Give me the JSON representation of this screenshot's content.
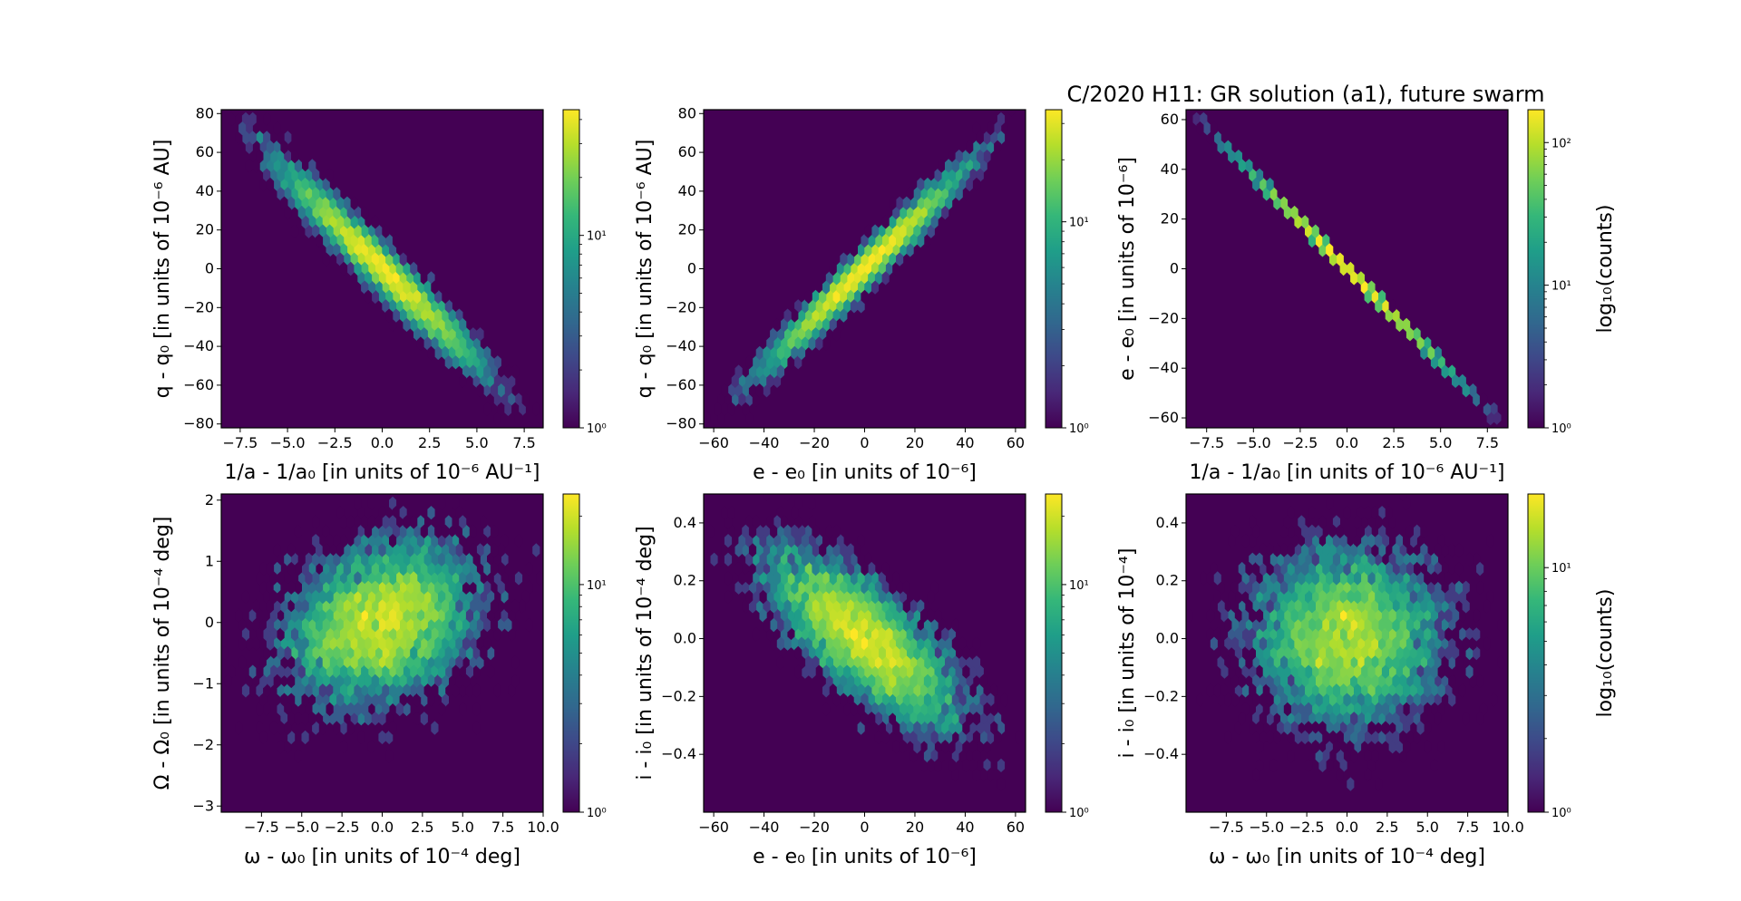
{
  "figure": {
    "title": "C/2020 H11: GR solution (a1), future swarm"
  },
  "colors": {
    "background": "#ffffff",
    "plot_bg": "#440154",
    "viridis": [
      "#440154",
      "#482878",
      "#3e4989",
      "#31688e",
      "#26828e",
      "#1f9e89",
      "#35b779",
      "#6ece58",
      "#b5de2b",
      "#fde725"
    ]
  },
  "chart_data": [
    {
      "type": "heatmap",
      "panel": "top-left",
      "xlabel": "1/a - 1/a₀ [in units of 10⁻⁶ AU⁻¹]",
      "ylabel": "q - q₀ [in units of 10⁻⁶ AU]",
      "xlim": [
        -8.5,
        8.5
      ],
      "ylim": [
        -82,
        82
      ],
      "xticks": [
        -7.5,
        -5.0,
        -2.5,
        0.0,
        2.5,
        5.0,
        7.5
      ],
      "xtick_labels": [
        "−7.5",
        "−5.0",
        "−2.5",
        "0.0",
        "2.5",
        "5.0",
        "7.5"
      ],
      "yticks": [
        -80,
        -60,
        -40,
        -20,
        0,
        20,
        40,
        60,
        80
      ],
      "ytick_labels": [
        "−80",
        "−60",
        "−40",
        "−20",
        "0",
        "20",
        "40",
        "60",
        "80"
      ],
      "distribution": {
        "shape": "correlated",
        "slope": -9.6,
        "x_sigma": 2.6,
        "perp_sigma": 5.5,
        "x_range": [
          -8.3,
          8.3
        ]
      },
      "colorbar": {
        "scale": "log",
        "range": [
          1,
          45
        ],
        "tick_labels": [
          "10⁰",
          "10¹"
        ],
        "label": ""
      }
    },
    {
      "type": "heatmap",
      "panel": "top-middle",
      "xlabel": "e - e₀ [in units of 10⁻⁶]",
      "ylabel": "q - q₀ [in units of 10⁻⁶ AU]",
      "xlim": [
        -64,
        64
      ],
      "ylim": [
        -82,
        82
      ],
      "xticks": [
        -60,
        -40,
        -20,
        0,
        20,
        40,
        60
      ],
      "xtick_labels": [
        "−60",
        "−40",
        "−20",
        "0",
        "20",
        "40",
        "60"
      ],
      "yticks": [
        -80,
        -60,
        -40,
        -20,
        0,
        20,
        40,
        60,
        80
      ],
      "ytick_labels": [
        "−80",
        "−60",
        "−40",
        "−20",
        "0",
        "20",
        "40",
        "60",
        "80"
      ],
      "distribution": {
        "shape": "correlated",
        "slope": 1.28,
        "x_sigma": 19,
        "perp_sigma": 4.5,
        "x_range": [
          -62,
          62
        ]
      },
      "colorbar": {
        "scale": "log",
        "range": [
          1,
          35
        ],
        "tick_labels": [
          "10⁰",
          "10¹"
        ],
        "label": ""
      }
    },
    {
      "type": "heatmap",
      "panel": "top-right",
      "xlabel": "1/a - 1/a₀ [in units of 10⁻⁶ AU⁻¹]",
      "ylabel": "e - e₀ [in units of 10⁻⁶]",
      "xlim": [
        -8.6,
        8.6
      ],
      "ylim": [
        -64,
        64
      ],
      "xticks": [
        -7.5,
        -5.0,
        -2.5,
        0.0,
        2.5,
        5.0,
        7.5
      ],
      "xtick_labels": [
        "−7.5",
        "−5.0",
        "−2.5",
        "0.0",
        "2.5",
        "5.0",
        "7.5"
      ],
      "yticks": [
        -60,
        -40,
        -20,
        0,
        20,
        40,
        60
      ],
      "ytick_labels": [
        "−60",
        "−40",
        "−20",
        "0",
        "20",
        "40",
        "60"
      ],
      "distribution": {
        "shape": "line",
        "slope": -7.55,
        "x_sigma": 2.6,
        "x_range": [
          -8.3,
          8.3
        ]
      },
      "colorbar": {
        "scale": "log",
        "range": [
          1,
          170
        ],
        "tick_labels": [
          "10⁰",
          "10¹",
          "10²"
        ],
        "label": "log₁₀(counts)"
      }
    },
    {
      "type": "heatmap",
      "panel": "bottom-left",
      "xlabel": "ω - ω₀ [in units of 10⁻⁴ deg]",
      "ylabel": "Ω - Ω₀ [in units of 10⁻⁴ deg]",
      "xlim": [
        -10,
        10
      ],
      "ylim": [
        -3.1,
        2.1
      ],
      "xticks": [
        -7.5,
        -5.0,
        -2.5,
        0.0,
        2.5,
        5.0,
        7.5,
        10.0
      ],
      "xtick_labels": [
        "−7.5",
        "−5.0",
        "−2.5",
        "0.0",
        "2.5",
        "5.0",
        "7.5",
        "10.0"
      ],
      "yticks": [
        -3,
        -2,
        -1,
        0,
        1,
        2
      ],
      "ytick_labels": [
        "−3",
        "−2",
        "−1",
        "0",
        "1",
        "2"
      ],
      "distribution": {
        "shape": "blob",
        "x_sigma": 2.9,
        "y_sigma": 0.65,
        "rho": 0.25
      },
      "colorbar": {
        "scale": "log",
        "range": [
          1,
          25
        ],
        "tick_labels": [
          "10⁰",
          "10¹"
        ],
        "label": ""
      }
    },
    {
      "type": "heatmap",
      "panel": "bottom-middle",
      "xlabel": "e - e₀ [in units of 10⁻⁶]",
      "ylabel": "i - i₀ [in units of 10⁻⁴ deg]",
      "xlim": [
        -64,
        64
      ],
      "ylim": [
        -0.6,
        0.5
      ],
      "xticks": [
        -60,
        -40,
        -20,
        0,
        20,
        40,
        60
      ],
      "xtick_labels": [
        "−60",
        "−40",
        "−20",
        "0",
        "20",
        "40",
        "60"
      ],
      "yticks": [
        -0.4,
        -0.2,
        0.0,
        0.2,
        0.4
      ],
      "ytick_labels": [
        "−0.4",
        "−0.2",
        "0.0",
        "0.2",
        "0.4"
      ],
      "distribution": {
        "shape": "blob",
        "x_sigma": 19,
        "y_sigma": 0.15,
        "rho": -0.75
      },
      "colorbar": {
        "scale": "log",
        "range": [
          1,
          25
        ],
        "tick_labels": [
          "10⁰",
          "10¹"
        ],
        "label": ""
      }
    },
    {
      "type": "heatmap",
      "panel": "bottom-right",
      "xlabel": "ω - ω₀ [in units of 10⁻⁴ deg]",
      "ylabel": "i - i₀ [in units of 10⁻⁴]",
      "xlim": [
        -10,
        10
      ],
      "ylim": [
        -0.6,
        0.5
      ],
      "xticks": [
        -7.5,
        -5.0,
        -2.5,
        0.0,
        2.5,
        5.0,
        7.5,
        10.0
      ],
      "xtick_labels": [
        "−7.5",
        "−5.0",
        "−2.5",
        "0.0",
        "2.5",
        "5.0",
        "7.5",
        "10.0"
      ],
      "yticks": [
        -0.4,
        -0.2,
        0.0,
        0.2,
        0.4
      ],
      "ytick_labels": [
        "−0.4",
        "−0.2",
        "0.0",
        "0.2",
        "0.4"
      ],
      "distribution": {
        "shape": "blob",
        "x_sigma": 2.9,
        "y_sigma": 0.15,
        "rho": 0.0
      },
      "colorbar": {
        "scale": "log",
        "range": [
          1,
          20
        ],
        "tick_labels": [
          "10⁰",
          "10¹"
        ],
        "label": "log₁₀(counts)"
      }
    }
  ]
}
